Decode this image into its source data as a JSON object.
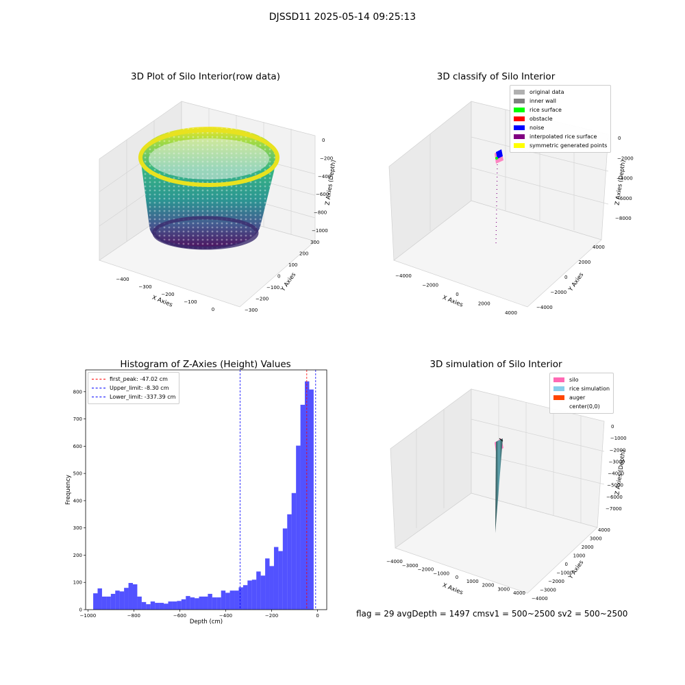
{
  "suptitle": "DJSSD11 2025-05-14 09:25:13",
  "panels": {
    "raw": {
      "title": "3D Plot of Silo Interior(row data)",
      "xlabel": "X Axies",
      "ylabel": "Y Axies",
      "zlabel": "Z Axies (Depth)",
      "xticks": [
        "−400",
        "−300",
        "−200",
        "−100",
        "0"
      ],
      "yticks": [
        "300",
        "200",
        "100",
        "0",
        "−100",
        "−200",
        "−300"
      ],
      "zticks": [
        "0",
        "−200",
        "−400",
        "−600",
        "−800",
        "−1000"
      ]
    },
    "classify": {
      "title": "3D classify of Silo Interior",
      "xlabel": "X Axies",
      "ylabel": "Y Axies",
      "zlabel": "Z Axies (Depth)",
      "xticks": [
        "−4000",
        "−2000",
        "0",
        "2000",
        "4000"
      ],
      "yticks": [
        "4000",
        "2000",
        "0",
        "−2000",
        "−4000"
      ],
      "zticks": [
        "0",
        "−2000",
        "−4000",
        "−6000",
        "−8000"
      ],
      "legend": [
        {
          "label": "original data",
          "color": "#b0b0b0"
        },
        {
          "label": "inner wall",
          "color": "#808080"
        },
        {
          "label": "rice surface",
          "color": "#00ff00"
        },
        {
          "label": "obstacle",
          "color": "#ff0000"
        },
        {
          "label": "noise",
          "color": "#0000ff"
        },
        {
          "label": "interpolated rice surface",
          "color": "#800080"
        },
        {
          "label": "symmetric generated points",
          "color": "#ffff00"
        }
      ]
    },
    "simulation": {
      "title": "3D simulation of Silo Interior",
      "xlabel": "X Axies",
      "ylabel": "Y Axies",
      "zlabel": "Z Axies (Depth)",
      "xticks": [
        "−4000",
        "−3000",
        "−2000",
        "−1000",
        "0",
        "1000",
        "2000",
        "3000",
        "4000"
      ],
      "yticks": [
        "4000",
        "3000",
        "2000",
        "1000",
        "0",
        "−1000",
        "−2000",
        "−3000",
        "−4000"
      ],
      "zticks": [
        "0",
        "−1000",
        "−2000",
        "−3000",
        "−4000",
        "−5000",
        "−6000",
        "−7000"
      ],
      "legend": [
        {
          "label": "silo",
          "color": "#ff69b4"
        },
        {
          "label": "rice simulation",
          "color": "#87ceeb"
        },
        {
          "label": "auger",
          "color": "#ff4500"
        },
        {
          "label": "center(0,0)",
          "color": ""
        }
      ]
    }
  },
  "chart_data": {
    "type": "bar",
    "title": "Histogram of Z-Axies (Height) Values",
    "xlabel": "Depth (cm)",
    "ylabel": "Frequency",
    "xlim": [
      -1010,
      40
    ],
    "ylim": [
      0,
      880
    ],
    "xticks": [
      -1000,
      -800,
      -600,
      -400,
      -200,
      0
    ],
    "yticks": [
      0,
      100,
      200,
      300,
      400,
      500,
      600,
      700,
      800
    ],
    "bar_color": "#0000ff",
    "bin_start": -977,
    "bin_width": 19.2,
    "values": [
      60,
      78,
      48,
      48,
      58,
      70,
      67,
      80,
      98,
      93,
      48,
      28,
      20,
      30,
      25,
      25,
      22,
      30,
      30,
      32,
      38,
      50,
      45,
      42,
      48,
      48,
      58,
      45,
      45,
      70,
      62,
      70,
      70,
      82,
      90,
      107,
      110,
      140,
      125,
      188,
      160,
      230,
      215,
      298,
      350,
      428,
      602,
      752,
      838,
      808
    ],
    "vlines": [
      {
        "label": "first_peak: -47.02 cm",
        "x": -47.02,
        "color": "#ff0000"
      },
      {
        "label": "Upper_limit: -8.30 cm",
        "x": -8.3,
        "color": "#0000ff"
      },
      {
        "label": "Lower_limit: -337.39 cm",
        "x": -337.39,
        "color": "#0000ff"
      }
    ],
    "legend_position": "upper left"
  },
  "footer": {
    "text": "flag = 29  avgDepth = 1497 cmsv1 = 500~2500  sv2 = 500~2500"
  }
}
